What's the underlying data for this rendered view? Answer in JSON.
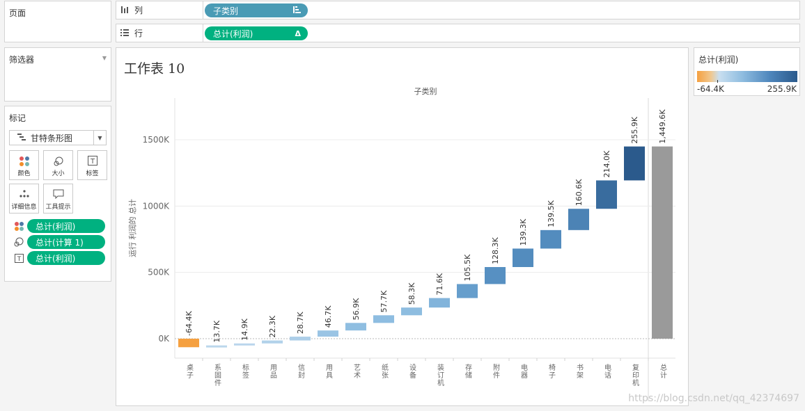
{
  "pages_panel": {
    "title": "页面"
  },
  "filters_panel": {
    "title": "筛选器"
  },
  "marks_panel": {
    "title": "标记",
    "mark_type": "甘特条形图",
    "buttons": {
      "color": "颜色",
      "size": "大小",
      "label": "标签",
      "detail": "详细信息",
      "tooltip": "工具提示"
    },
    "pills": [
      "总计(利润)",
      "总计(计算 1)",
      "总计(利润)"
    ]
  },
  "columns_shelf": {
    "label": "列",
    "pill": "子类别"
  },
  "rows_shelf": {
    "label": "行",
    "pill": "总计(利润)",
    "pill_symbol": "Δ"
  },
  "sheet": {
    "title": "工作表 10"
  },
  "legend": {
    "title": "总计(利润)",
    "min_label": "-64.4K",
    "max_label": "255.9K",
    "colors": {
      "low": "#f5a040",
      "mid": "#c9dff0",
      "high": "#2b5a8c"
    }
  },
  "watermark": "https://blog.csdn.net/qq_42374697",
  "chart_data": {
    "type": "waterfall",
    "title": "子类别",
    "ylabel": "运行 利润的 总计",
    "ylim": [
      -60000,
      1800000
    ],
    "yticks": [
      0,
      500000,
      1000000,
      1500000
    ],
    "ytick_labels": [
      "0K",
      "500K",
      "1000K",
      "1500K"
    ],
    "categories": [
      "桌子",
      "系固件",
      "标签",
      "用品",
      "信封",
      "用具",
      "艺术",
      "纸张",
      "设备",
      "装订机",
      "存储",
      "附件",
      "电器",
      "椅子",
      "书架",
      "电话",
      "复印机",
      "总计"
    ],
    "values": [
      -64400,
      13700,
      14900,
      22300,
      28700,
      46700,
      56900,
      57700,
      58300,
      71600,
      105500,
      128300,
      139300,
      139500,
      160600,
      214000,
      255900,
      1449600
    ],
    "value_labels": [
      "-64.4K",
      "13.7K",
      "14.9K",
      "22.3K",
      "28.7K",
      "46.7K",
      "56.9K",
      "57.7K",
      "58.3K",
      "71.6K",
      "105.5K",
      "128.3K",
      "139.3K",
      "139.5K",
      "160.6K",
      "214.0K",
      "255.9K",
      "1,449.6K"
    ],
    "total_color": "#9a9a9a"
  }
}
